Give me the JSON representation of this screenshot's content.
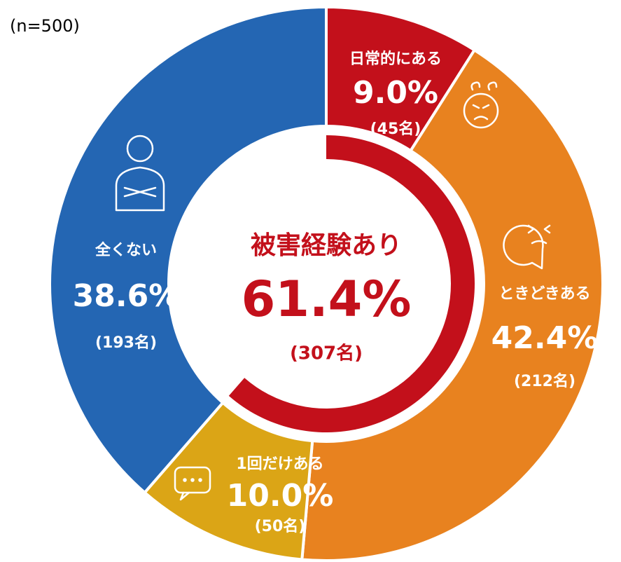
{
  "chart_data": {
    "type": "donut",
    "note": "(n=500)",
    "categories": [
      "日常的にある",
      "ときどきある",
      "1回だけある",
      "全くない"
    ],
    "values": [
      9.0,
      42.4,
      10.0,
      38.6
    ],
    "value_labels": [
      "9.0%",
      "42.4%",
      "10.0%",
      "38.6%"
    ],
    "count_labels": [
      "(45名)",
      "(212名)",
      "(50名)",
      "(193名)"
    ],
    "colors": [
      "#c3101b",
      "#e8821f",
      "#dba516",
      "#2466b3"
    ],
    "center": {
      "label": "被害経験あり",
      "value": 61.4,
      "value_label": "61.4%",
      "count_label": "(307名)",
      "color": "#c3101b"
    }
  }
}
